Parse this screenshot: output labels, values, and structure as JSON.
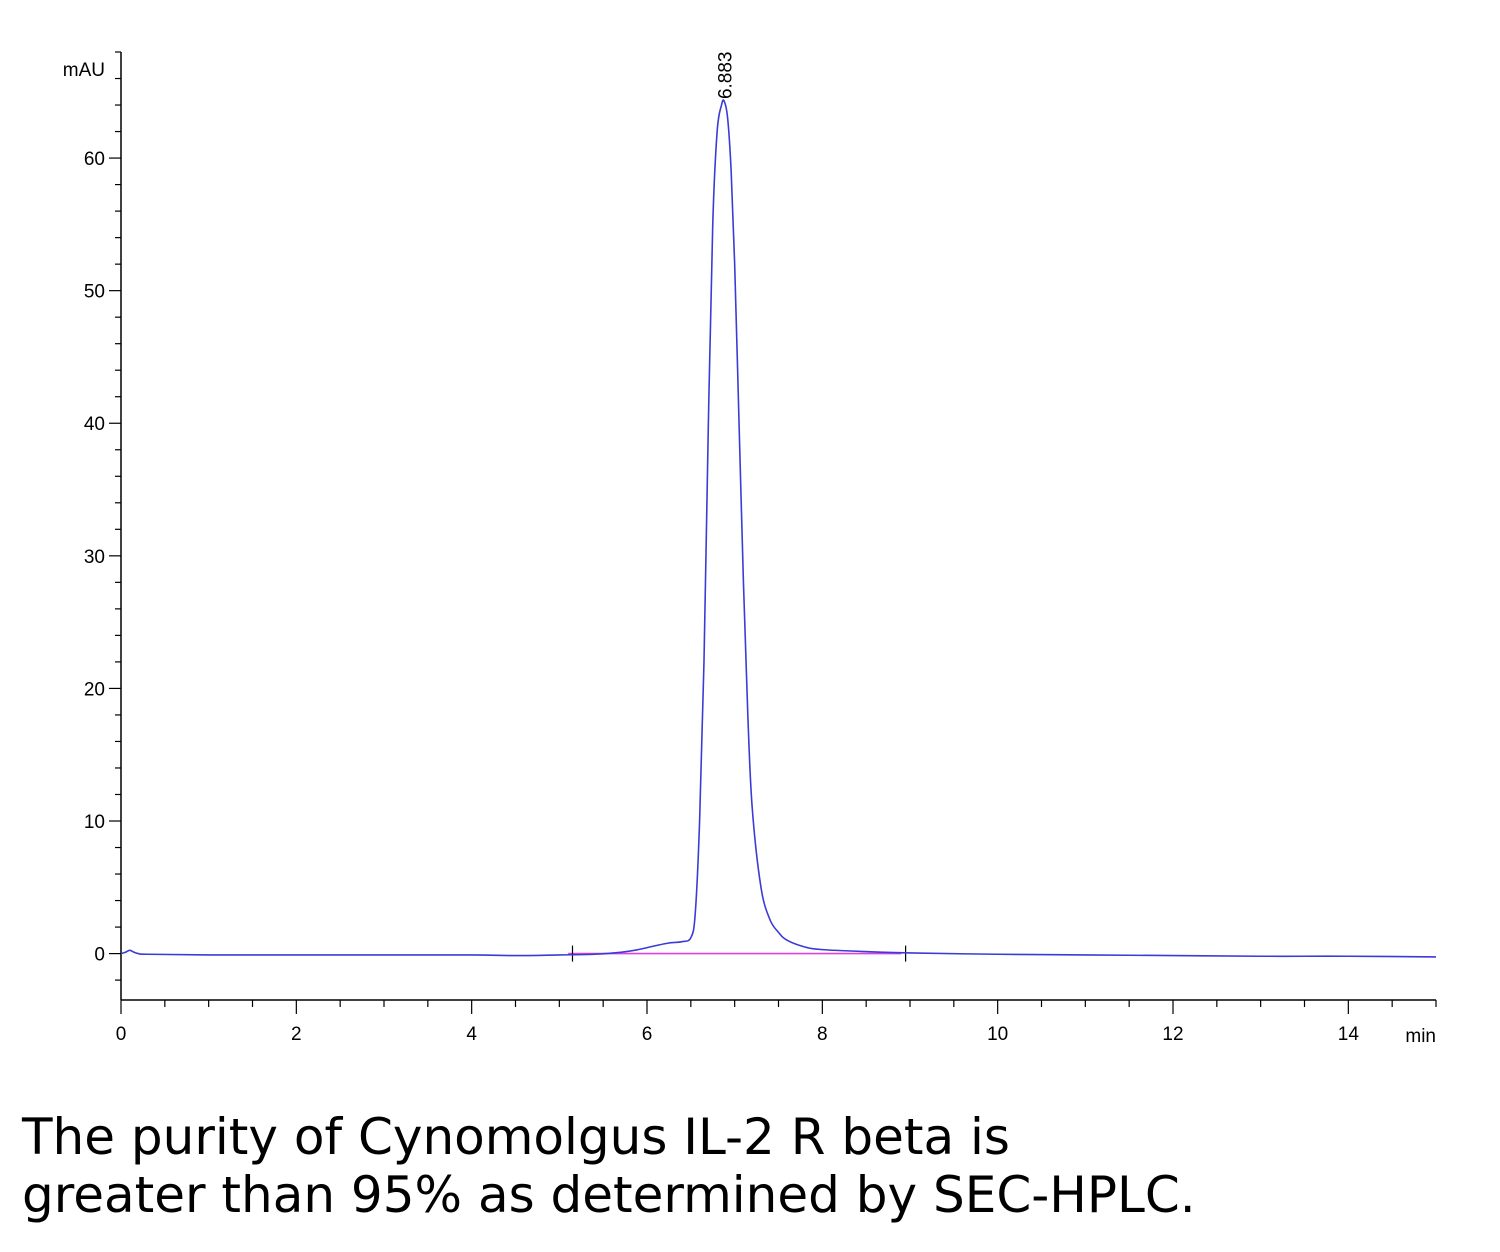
{
  "chart_data": {
    "type": "line",
    "xlabel": "min",
    "ylabel": "mAU",
    "xlim": [
      0,
      15
    ],
    "ylim": [
      -3.5,
      68
    ],
    "x_ticks": [
      0,
      2,
      4,
      6,
      8,
      10,
      12,
      14
    ],
    "y_ticks": [
      0,
      10,
      20,
      30,
      40,
      50,
      60
    ],
    "x_minor_step": 0.5,
    "y_minor_step": 2,
    "grid": false,
    "series": [
      {
        "color": "#3b3bd6",
        "x": [
          0.0,
          0.05,
          0.1,
          0.15,
          0.2,
          0.3,
          1.0,
          2.0,
          3.0,
          4.0,
          4.5,
          5.0,
          5.4,
          5.7,
          5.9,
          6.1,
          6.25,
          6.4,
          6.5,
          6.55,
          6.6,
          6.65,
          6.7,
          6.75,
          6.8,
          6.85,
          6.88,
          6.92,
          6.96,
          7.0,
          7.05,
          7.1,
          7.15,
          7.2,
          7.3,
          7.4,
          7.5,
          7.6,
          7.8,
          8.0,
          8.5,
          9.0,
          10.0,
          11.0,
          12.0,
          13.0,
          14.0,
          15.0
        ],
        "y": [
          0.0,
          0.1,
          0.25,
          0.1,
          0.0,
          -0.05,
          -0.1,
          -0.1,
          -0.1,
          -0.1,
          -0.15,
          -0.1,
          -0.05,
          0.1,
          0.3,
          0.6,
          0.8,
          0.9,
          1.2,
          3.0,
          10.0,
          22.0,
          40.0,
          55.0,
          62.0,
          64.0,
          64.3,
          63.0,
          59.0,
          52.0,
          40.0,
          28.0,
          18.0,
          11.0,
          5.0,
          2.6,
          1.6,
          1.0,
          0.5,
          0.3,
          0.15,
          0.05,
          -0.05,
          -0.1,
          -0.15,
          -0.2,
          -0.2,
          -0.25
        ]
      }
    ],
    "baseline": {
      "color": "#e040e0",
      "x": [
        5.1,
        8.9
      ],
      "y": [
        0.0,
        0.0
      ]
    },
    "integration_marks": [
      5.15,
      8.95
    ],
    "annotations": [
      {
        "text": "6.883",
        "x": 6.883,
        "y": 64.3
      }
    ]
  },
  "caption": {
    "line1": "The purity of Cynomolgus IL-2 R beta is",
    "line2": "greater than 95% as determined by SEC-HPLC."
  }
}
